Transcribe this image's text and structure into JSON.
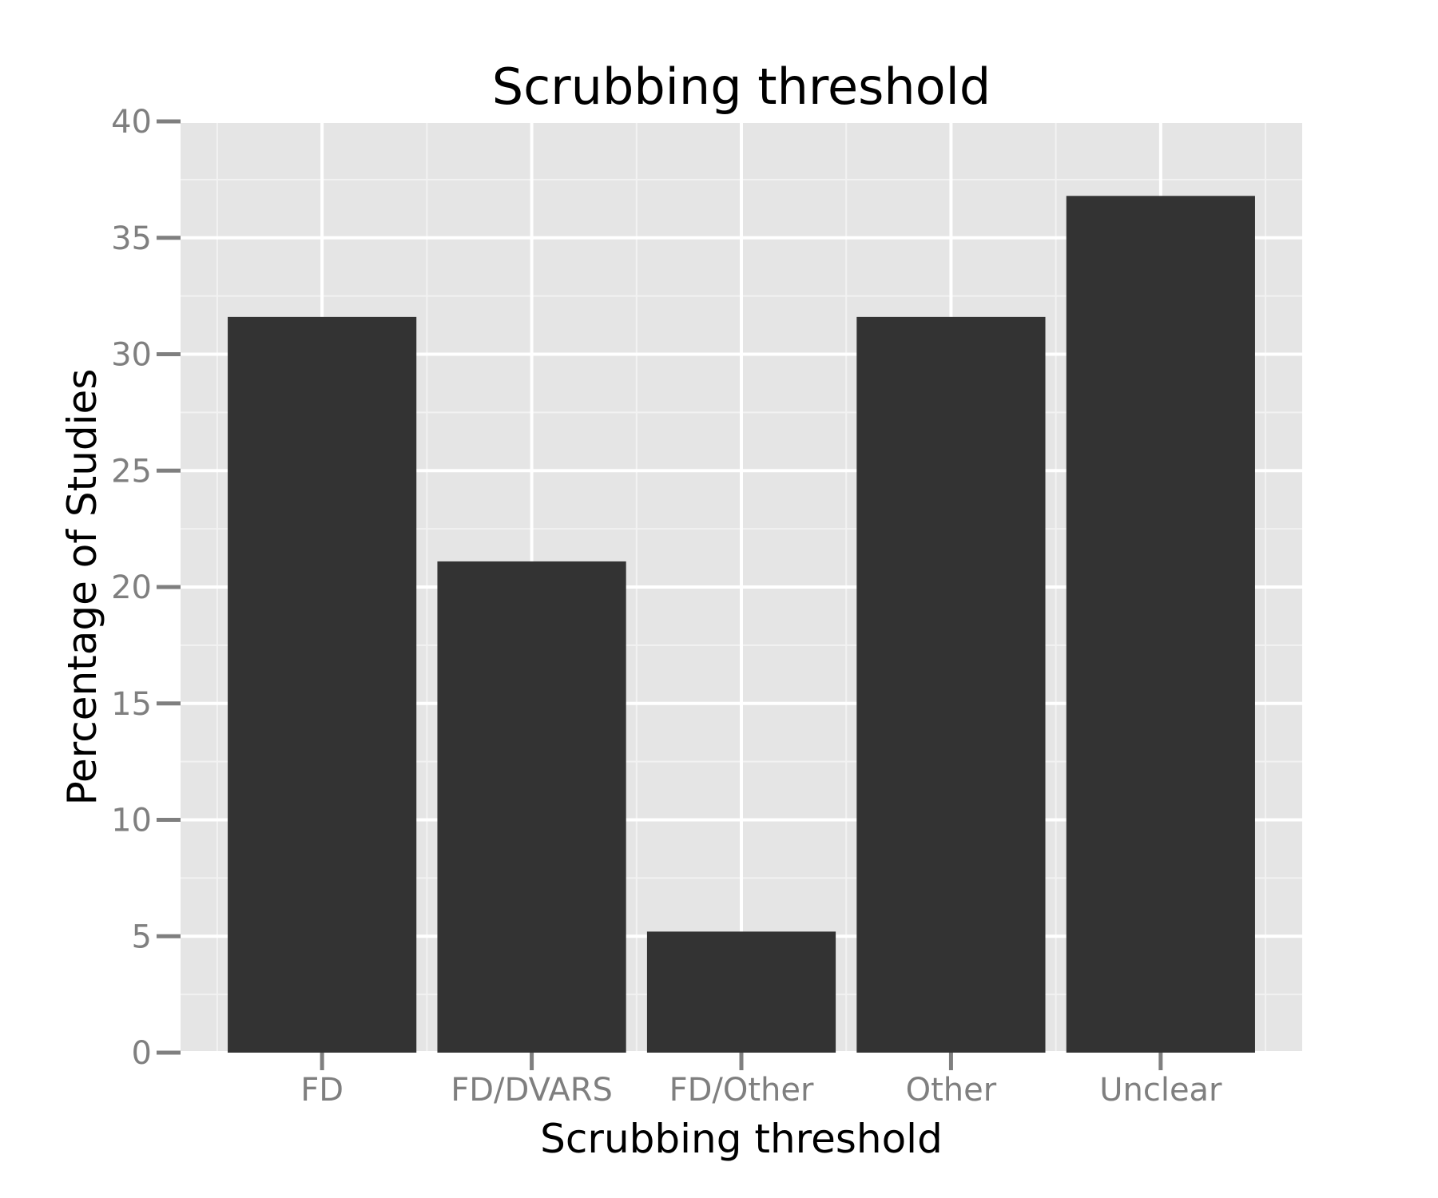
{
  "chart_data": {
    "type": "bar",
    "title": "Scrubbing threshold",
    "xlabel": "Scrubbing threshold",
    "ylabel": "Percentage of Studies",
    "categories": [
      "FD",
      "FD/DVARS",
      "FD/Other",
      "Other",
      "Unclear"
    ],
    "values": [
      31.6,
      21.1,
      5.2,
      31.6,
      36.8
    ],
    "ylim": [
      0,
      40
    ],
    "yticks": [
      0,
      5,
      10,
      15,
      20,
      25,
      30,
      35,
      40
    ],
    "ytick_labels": [
      "0",
      "5",
      "10",
      "15",
      "20",
      "25",
      "30",
      "35",
      "40"
    ],
    "grid": true,
    "legend": "none",
    "colors": {
      "bar": "#333333",
      "panel": "#e5e5e5",
      "grid_major": "#ffffff",
      "grid_minor": "#f2f2f2",
      "tick": "#7f7f7f"
    }
  }
}
